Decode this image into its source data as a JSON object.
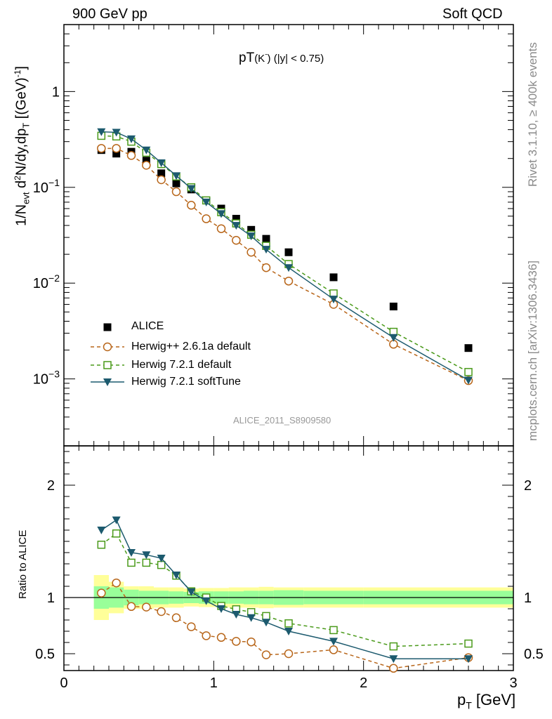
{
  "header": {
    "left": "900 GeV pp",
    "right": "Soft QCD"
  },
  "plot_title": {
    "main": "pT",
    "sub": "(K",
    "sup": "-",
    "tail": ") (|y| < 0.75)"
  },
  "watermark": "ALICE_2011_S8909580",
  "side_labels": {
    "rivet": "Rivet 3.1.10, ≥ 400k events",
    "mcplots": "mcplots.cern.ch [arXiv:1306.3436]"
  },
  "axes": {
    "xlabel": "p",
    "xlabel_sub": "T",
    "xlabel_unit": " [GeV]",
    "ylabel": "1/N_evt d²N/dy,dp_T [(GeV)⁻¹]",
    "ratio_ylabel": "Ratio to ALICE"
  },
  "legend": {
    "alice": "ALICE",
    "h26": "Herwig++ 2.6.1a default",
    "h721": "Herwig 7.2.1 default",
    "h721soft": "Herwig 7.2.1 softTune"
  },
  "colors": {
    "alice": "#000000",
    "h26": "#b8661a",
    "h721": "#4a9a1a",
    "h721soft": "#1c5a6e",
    "band_inner": "#99ff99",
    "band_outer": "#ffff99"
  },
  "chart_data": [
    {
      "type": "scatter",
      "x_range": [
        0,
        3
      ],
      "y_range": [
        0.0002,
        5
      ],
      "log_y": true,
      "x_ticks": [
        "0",
        "1",
        "2",
        "3"
      ],
      "y_ticks": [
        "10^-3",
        "10^-2",
        "10^-1",
        "1"
      ],
      "series": [
        {
          "name": "ALICE",
          "marker": "filled-square",
          "x": [
            0.25,
            0.35,
            0.45,
            0.55,
            0.65,
            0.75,
            0.85,
            0.95,
            1.05,
            1.15,
            1.25,
            1.35,
            1.5,
            1.8,
            2.2,
            2.7
          ],
          "y": [
            0.245,
            0.225,
            0.235,
            0.19,
            0.14,
            0.11,
            0.095,
            0.073,
            0.06,
            0.047,
            0.036,
            0.029,
            0.021,
            0.0115,
            0.0057,
            0.0021
          ]
        },
        {
          "name": "Herwig++ 2.6.1a default",
          "marker": "open-circle",
          "line": "dashed",
          "x": [
            0.25,
            0.35,
            0.45,
            0.55,
            0.65,
            0.75,
            0.85,
            0.95,
            1.05,
            1.15,
            1.25,
            1.35,
            1.5,
            1.8,
            2.2,
            2.7
          ],
          "y": [
            0.255,
            0.255,
            0.215,
            0.17,
            0.12,
            0.09,
            0.065,
            0.047,
            0.037,
            0.028,
            0.021,
            0.0145,
            0.0105,
            0.006,
            0.0023,
            0.00096
          ]
        },
        {
          "name": "Herwig 7.2.1 default",
          "marker": "open-square",
          "line": "dashed",
          "x": [
            0.25,
            0.35,
            0.45,
            0.55,
            0.65,
            0.75,
            0.85,
            0.95,
            1.05,
            1.15,
            1.25,
            1.35,
            1.5,
            1.8,
            2.2,
            2.7
          ],
          "y": [
            0.345,
            0.34,
            0.3,
            0.23,
            0.175,
            0.13,
            0.1,
            0.073,
            0.055,
            0.042,
            0.032,
            0.0245,
            0.0158,
            0.0078,
            0.0031,
            0.00118
          ]
        },
        {
          "name": "Herwig 7.2.1 softTune",
          "marker": "filled-triangle-down",
          "line": "solid",
          "x": [
            0.25,
            0.35,
            0.45,
            0.55,
            0.65,
            0.75,
            0.85,
            0.95,
            1.05,
            1.15,
            1.25,
            1.35,
            1.5,
            1.8,
            2.2,
            2.7
          ],
          "y": [
            0.38,
            0.375,
            0.32,
            0.245,
            0.18,
            0.132,
            0.097,
            0.07,
            0.053,
            0.04,
            0.031,
            0.0225,
            0.0145,
            0.0068,
            0.0027,
            0.00097
          ]
        }
      ]
    },
    {
      "type": "line",
      "x_range": [
        0,
        3
      ],
      "y_range": [
        0.35,
        2.35
      ],
      "y_ticks": [
        "0.5",
        "1",
        "2"
      ],
      "bands": {
        "edges": [
          0.2,
          0.3,
          0.4,
          0.5,
          0.6,
          0.7,
          0.8,
          0.9,
          1.0,
          1.1,
          1.2,
          1.3,
          1.4,
          1.6,
          2.0,
          2.4,
          3.0
        ],
        "inner": [
          0.1,
          0.09,
          0.07,
          0.06,
          0.06,
          0.055,
          0.05,
          0.055,
          0.055,
          0.055,
          0.06,
          0.06,
          0.065,
          0.06,
          0.06,
          0.06
        ],
        "outer": [
          0.2,
          0.14,
          0.1,
          0.1,
          0.09,
          0.09,
          0.08,
          0.085,
          0.085,
          0.09,
          0.09,
          0.095,
          0.09,
          0.09,
          0.09,
          0.09
        ]
      },
      "series": [
        {
          "name": "Herwig++ 2.6.1a default",
          "x": [
            0.25,
            0.35,
            0.45,
            0.55,
            0.65,
            0.75,
            0.85,
            0.95,
            1.05,
            1.15,
            1.25,
            1.35,
            1.5,
            1.8,
            2.2,
            2.7
          ],
          "y": [
            1.04,
            1.13,
            0.92,
            0.915,
            0.875,
            0.82,
            0.74,
            0.66,
            0.645,
            0.61,
            0.605,
            0.49,
            0.5,
            0.535,
            0.37,
            0.465
          ]
        },
        {
          "name": "Herwig 7.2.1 default",
          "x": [
            0.25,
            0.35,
            0.45,
            0.55,
            0.65,
            0.75,
            0.85,
            0.95,
            1.05,
            1.15,
            1.25,
            1.35,
            1.5,
            1.8,
            2.2,
            2.7
          ],
          "y": [
            1.47,
            1.57,
            1.31,
            1.31,
            1.29,
            1.195,
            1.055,
            1.0,
            0.925,
            0.895,
            0.87,
            0.835,
            0.77,
            0.71,
            0.565,
            0.59
          ]
        },
        {
          "name": "Herwig 7.2.1 softTune",
          "x": [
            0.25,
            0.35,
            0.45,
            0.55,
            0.65,
            0.75,
            0.85,
            0.95,
            1.05,
            1.15,
            1.25,
            1.35,
            1.5,
            1.8,
            2.2,
            2.7
          ],
          "y": [
            1.6,
            1.69,
            1.4,
            1.38,
            1.35,
            1.2,
            1.05,
            0.97,
            0.9,
            0.85,
            0.82,
            0.78,
            0.7,
            0.61,
            0.455,
            0.455
          ]
        }
      ]
    }
  ]
}
